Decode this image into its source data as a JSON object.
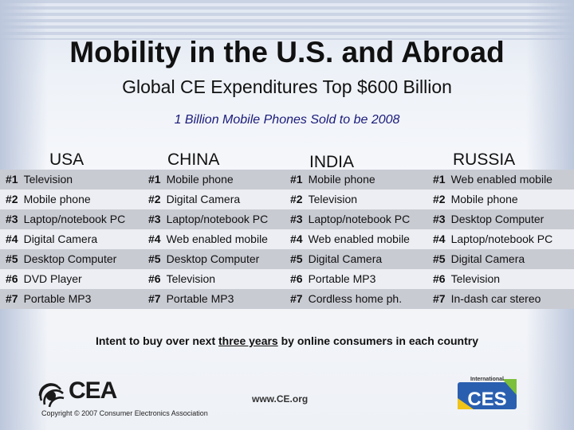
{
  "title": "Mobility in the U.S. and Abroad",
  "subtitle": "Global CE Expenditures Top $600 Billion",
  "note": "1 Billion Mobile Phones Sold to be 2008",
  "countries": [
    "USA",
    "CHINA",
    "INDIA",
    "RUSSIA"
  ],
  "ranks": [
    "#1",
    "#2",
    "#3",
    "#4",
    "#5",
    "#6",
    "#7"
  ],
  "lists": {
    "usa": [
      "Television",
      "Mobile phone",
      "Laptop/notebook PC",
      "Digital Camera",
      "Desktop Computer",
      "DVD Player",
      "Portable MP3"
    ],
    "china": [
      "Mobile phone",
      "Digital Camera",
      "Laptop/notebook PC",
      "Web enabled mobile",
      "Desktop Computer",
      "Television",
      "Portable MP3"
    ],
    "india": [
      "Mobile phone",
      "Television",
      "Laptop/notebook PC",
      "Web enabled mobile",
      "Digital Camera",
      "Portable MP3",
      "Cordless home ph."
    ],
    "russia": [
      "Web enabled mobile",
      "Mobile phone",
      "Desktop Computer",
      "Laptop/notebook PC",
      "Digital Camera",
      "Television",
      "In-dash car stereo"
    ]
  },
  "intent": {
    "before": "Intent to buy over next ",
    "underlined": "three years",
    "after": " by online consumers in each country"
  },
  "footer": {
    "logo_text": "CEA",
    "copyright": "Copyright © 2007 Consumer Electronics Association",
    "url": "www.CE.org",
    "ces_small": "International",
    "ces_big": "CES"
  },
  "colors": {
    "row_dark": "#c9cbd3",
    "row_light": "#eceef3",
    "note_text": "#1a1a7a",
    "ces_blue": "#2a5fb0",
    "ces_green": "#7cbf3a"
  }
}
